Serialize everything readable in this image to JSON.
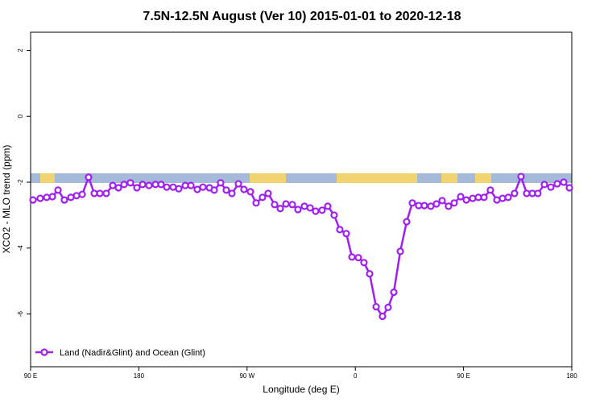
{
  "chart_data": {
    "type": "line",
    "title": "7.5N-12.5N August (Ver 10)   2015-01-01 to 2020-12-18",
    "x_label": "Longitude (deg E)",
    "y_label": "XCO2 - MLO trend (ppm)",
    "xlim": [
      90,
      540
    ],
    "xticks": [
      {
        "value": 90,
        "label": "90 E"
      },
      {
        "value": 180,
        "label": "180"
      },
      {
        "value": 270,
        "label": "90 W"
      },
      {
        "value": 360,
        "label": "0"
      },
      {
        "value": 450,
        "label": "90 E"
      },
      {
        "value": 540,
        "label": "180"
      }
    ],
    "ylim": [
      -7.6,
      2.55
    ],
    "yticks": [
      -6,
      -4,
      -2,
      0,
      2
    ],
    "legend": "bottomleft",
    "x": [
      92.0,
      98.0,
      103.4,
      108.1,
      112.8,
      118.1,
      123.5,
      128.2,
      132.9,
      138.2,
      142.9,
      147.6,
      152.9,
      158.3,
      163.0,
      167.7,
      173.0,
      178.4,
      183.1,
      188.4,
      193.8,
      198.5,
      203.2,
      208.5,
      213.2,
      218.6,
      223.3,
      228.6,
      233.3,
      238.7,
      242.7,
      248.0,
      252.7,
      257.4,
      262.8,
      267.4,
      272.8,
      277.5,
      282.8,
      287.5,
      292.9,
      297.6,
      302.3,
      307.6,
      312.3,
      317.7,
      322.4,
      327.0,
      332.4,
      337.1,
      342.4,
      347.1,
      352.5,
      357.2,
      362.5,
      367.2,
      371.9,
      377.3,
      382.6,
      387.3,
      392.0,
      397.4,
      402.7,
      407.4,
      412.7,
      417.4,
      422.8,
      427.5,
      432.2,
      437.5,
      442.2,
      447.6,
      452.3,
      457.6,
      462.3,
      467.0,
      472.3,
      477.7,
      482.4,
      487.1,
      492.4,
      497.8,
      502.5,
      507.2,
      511.8,
      517.2,
      522.6,
      527.9,
      533.3,
      538.0
    ],
    "series": [
      {
        "name": "Land (Nadir&Glint) and Ocean (Glint)",
        "color": "#a020f0",
        "values": [
          -2.54,
          -2.49,
          -2.46,
          -2.44,
          -2.24,
          -2.54,
          -2.46,
          -2.41,
          -2.37,
          -1.85,
          -2.34,
          -2.34,
          -2.34,
          -2.1,
          -2.17,
          -2.07,
          -2.02,
          -2.17,
          -2.07,
          -2.1,
          -2.07,
          -2.07,
          -2.15,
          -2.15,
          -2.2,
          -2.1,
          -2.1,
          -2.22,
          -2.15,
          -2.17,
          -2.24,
          -2.02,
          -2.24,
          -2.34,
          -2.05,
          -2.22,
          -2.29,
          -2.63,
          -2.46,
          -2.34,
          -2.68,
          -2.8,
          -2.66,
          -2.68,
          -2.83,
          -2.73,
          -2.78,
          -2.88,
          -2.85,
          -2.73,
          -3.0,
          -3.44,
          -3.56,
          -4.27,
          -4.29,
          -4.44,
          -4.78,
          -5.78,
          -6.07,
          -5.8,
          -5.34,
          -4.1,
          -3.2,
          -2.63,
          -2.71,
          -2.71,
          -2.73,
          -2.66,
          -2.56,
          -2.73,
          -2.63,
          -2.44,
          -2.54,
          -2.49,
          -2.46,
          -2.46,
          -2.24,
          -2.54,
          -2.49,
          -2.46,
          -2.34,
          -1.83,
          -2.34,
          -2.34,
          -2.34,
          -2.07,
          -2.15,
          -2.05,
          -2.0,
          -2.17
        ]
      }
    ]
  }
}
